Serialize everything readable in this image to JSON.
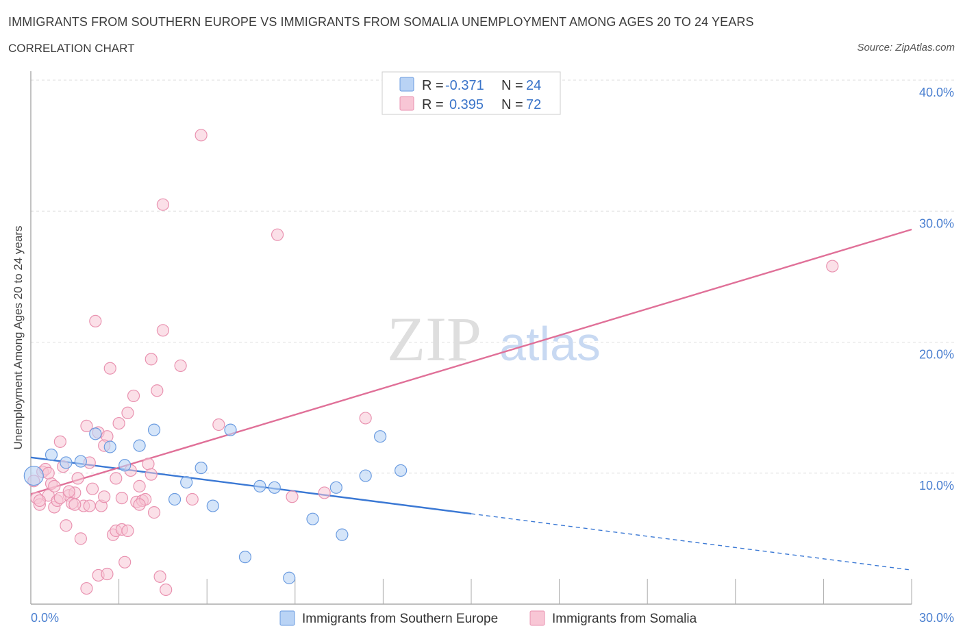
{
  "header": {
    "title": "IMMIGRANTS FROM SOUTHERN EUROPE VS IMMIGRANTS FROM SOMALIA UNEMPLOYMENT AMONG AGES 20 TO 24 YEARS",
    "subtitle": "CORRELATION CHART",
    "source": "Source: ZipAtlas.com"
  },
  "watermark": {
    "zip": "ZIP",
    "atlas": "atlas"
  },
  "colors": {
    "blue_fill": "#b9d3f5",
    "blue_stroke": "#6a9be0",
    "blue_line": "#3a78d4",
    "pink_fill": "#f8c6d5",
    "pink_stroke": "#e992b0",
    "pink_line": "#e07098",
    "grid": "#dddddd",
    "axis_tick_text": "#4a7fd0"
  },
  "legend": {
    "rows": [
      {
        "r_label": "R = ",
        "r_value": "-0.371",
        "n_label": "N = ",
        "n_value": "24"
      },
      {
        "r_label": "R = ",
        "r_value": "0.395",
        "n_label": "N = ",
        "n_value": "72"
      }
    ]
  },
  "chart_data": {
    "type": "scatter",
    "title": "IMMIGRANTS FROM SOUTHERN EUROPE VS IMMIGRANTS FROM SOMALIA UNEMPLOYMENT AMONG AGES 20 TO 24 YEARS",
    "xlabel": "",
    "ylabel": "Unemployment Among Ages 20 to 24 years",
    "xlim": [
      0,
      30
    ],
    "ylim": [
      0,
      40
    ],
    "x_tick_labels": [
      "0.0%",
      "30.0%"
    ],
    "y_tick_labels": [
      "10.0%",
      "20.0%",
      "30.0%",
      "40.0%"
    ],
    "y_tick_values": [
      10,
      20,
      30,
      40
    ],
    "series": [
      {
        "name": "Immigrants from Southern Europe",
        "color": "blue",
        "r": -0.371,
        "n": 24,
        "trend": {
          "x0": 0,
          "y0": 11.2,
          "x1": 30,
          "y1": 2.6,
          "solid_until_x": 15
        },
        "points": [
          [
            0.1,
            9.8
          ],
          [
            0.7,
            11.4
          ],
          [
            1.2,
            10.8
          ],
          [
            1.7,
            10.9
          ],
          [
            2.2,
            13.0
          ],
          [
            2.7,
            12.0
          ],
          [
            3.2,
            10.6
          ],
          [
            3.7,
            12.1
          ],
          [
            4.2,
            13.3
          ],
          [
            4.9,
            8.0
          ],
          [
            5.3,
            9.3
          ],
          [
            5.8,
            10.4
          ],
          [
            6.2,
            7.5
          ],
          [
            6.8,
            13.3
          ],
          [
            7.3,
            3.6
          ],
          [
            7.8,
            9.0
          ],
          [
            8.3,
            8.9
          ],
          [
            8.8,
            2.0
          ],
          [
            9.6,
            6.5
          ],
          [
            10.4,
            8.9
          ],
          [
            10.6,
            5.3
          ],
          [
            11.4,
            9.8
          ],
          [
            11.9,
            12.8
          ],
          [
            12.6,
            10.2
          ]
        ]
      },
      {
        "name": "Immigrants from Somalia",
        "color": "pink",
        "r": 0.395,
        "n": 72,
        "trend": {
          "x0": 0,
          "y0": 8.4,
          "x1": 30,
          "y1": 28.6
        },
        "points": [
          [
            0.1,
            9.4
          ],
          [
            0.2,
            8.1
          ],
          [
            0.3,
            7.6
          ],
          [
            0.4,
            10.1
          ],
          [
            0.5,
            10.3
          ],
          [
            0.6,
            8.3
          ],
          [
            0.7,
            9.2
          ],
          [
            0.8,
            7.4
          ],
          [
            0.9,
            7.9
          ],
          [
            1.0,
            12.4
          ],
          [
            1.1,
            10.5
          ],
          [
            1.2,
            6.0
          ],
          [
            1.3,
            8.3
          ],
          [
            1.4,
            7.7
          ],
          [
            1.5,
            8.5
          ],
          [
            1.6,
            9.6
          ],
          [
            1.7,
            5.0
          ],
          [
            1.8,
            7.5
          ],
          [
            1.9,
            13.6
          ],
          [
            2.0,
            10.8
          ],
          [
            2.1,
            8.8
          ],
          [
            2.2,
            21.6
          ],
          [
            2.3,
            13.1
          ],
          [
            2.4,
            7.5
          ],
          [
            2.5,
            8.2
          ],
          [
            2.6,
            12.8
          ],
          [
            2.7,
            18.0
          ],
          [
            2.8,
            5.3
          ],
          [
            2.9,
            5.6
          ],
          [
            3.0,
            13.8
          ],
          [
            3.1,
            8.1
          ],
          [
            3.2,
            3.2
          ],
          [
            3.3,
            14.6
          ],
          [
            3.4,
            10.2
          ],
          [
            3.5,
            15.9
          ],
          [
            3.6,
            7.8
          ],
          [
            3.7,
            9.0
          ],
          [
            3.8,
            7.9
          ],
          [
            3.9,
            8.0
          ],
          [
            4.0,
            10.7
          ],
          [
            4.1,
            18.7
          ],
          [
            4.2,
            7.0
          ],
          [
            4.3,
            16.3
          ],
          [
            4.4,
            2.1
          ],
          [
            4.5,
            30.5
          ],
          [
            4.5,
            20.9
          ],
          [
            4.6,
            1.1
          ],
          [
            5.1,
            18.2
          ],
          [
            5.5,
            8.0
          ],
          [
            5.8,
            35.8
          ],
          [
            6.4,
            13.7
          ],
          [
            8.4,
            28.2
          ],
          [
            8.9,
            8.2
          ],
          [
            10.0,
            8.5
          ],
          [
            11.4,
            14.2
          ],
          [
            27.3,
            25.8
          ],
          [
            0.3,
            7.9
          ],
          [
            0.6,
            10.0
          ],
          [
            1.0,
            8.1
          ],
          [
            1.5,
            7.6
          ],
          [
            2.0,
            7.5
          ],
          [
            2.3,
            2.2
          ],
          [
            2.6,
            2.3
          ],
          [
            2.9,
            9.6
          ],
          [
            3.1,
            5.7
          ],
          [
            3.3,
            5.6
          ],
          [
            1.9,
            1.2
          ],
          [
            3.7,
            7.6
          ],
          [
            2.5,
            12.1
          ],
          [
            4.1,
            9.9
          ],
          [
            0.8,
            9.0
          ],
          [
            1.3,
            8.6
          ]
        ]
      }
    ]
  }
}
